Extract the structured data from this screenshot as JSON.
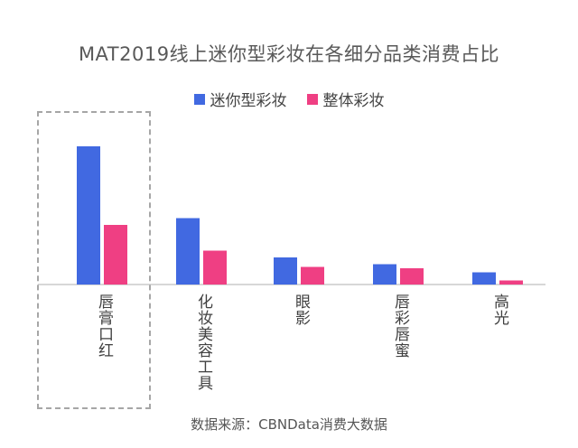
{
  "chart_data": {
    "type": "bar",
    "title": "MAT2019线上迷你型彩妆在各细分品类消费占比",
    "categories": [
      "唇膏/口红",
      "化妆/美容工具",
      "眼影",
      "唇彩/唇蜜",
      "高光"
    ],
    "category_labels_display": [
      "唇膏口红",
      "化妆美容工具",
      "眼影",
      "唇彩唇蜜",
      "高光"
    ],
    "series": [
      {
        "name": "迷你型彩妆",
        "color": "#4169e1",
        "values": [
          51,
          24.5,
          10,
          7.5,
          4.5
        ]
      },
      {
        "name": "整体彩妆",
        "color": "#ef3f83",
        "values": [
          22,
          12.5,
          6.5,
          6,
          1.5
        ]
      }
    ],
    "ylim": [
      0,
      60
    ],
    "xlabel": "",
    "ylabel": "",
    "grid": false,
    "legend": "top-center",
    "highlighted_category": "唇膏/口红"
  },
  "footer": {
    "source": "数据来源：CBNData消费大数据"
  }
}
